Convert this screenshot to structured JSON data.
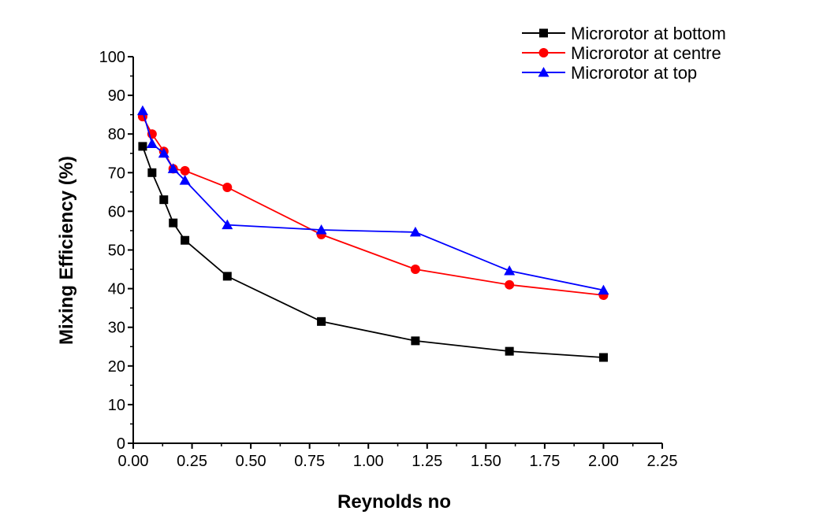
{
  "chart_data": {
    "type": "line",
    "title": "",
    "xlabel": "Reynolds no",
    "ylabel": "Mixing Efficiency (%)",
    "xlim": [
      0,
      2.25
    ],
    "ylim": [
      0,
      100
    ],
    "x_ticks": [
      "0.00",
      "0.25",
      "0.50",
      "0.75",
      "1.00",
      "1.25",
      "1.50",
      "1.75",
      "2.00",
      "2.25"
    ],
    "y_ticks": [
      "0",
      "10",
      "20",
      "30",
      "40",
      "50",
      "60",
      "70",
      "80",
      "90",
      "100"
    ],
    "grid": false,
    "legend_position": "top-right",
    "series": [
      {
        "name": "Microrotor at bottom",
        "color": "#000000",
        "marker": "square",
        "points": [
          [
            0.04,
            76.8
          ],
          [
            0.08,
            70.0
          ],
          [
            0.13,
            63.0
          ],
          [
            0.17,
            57.0
          ],
          [
            0.22,
            52.5
          ],
          [
            0.4,
            43.2
          ],
          [
            0.8,
            31.5
          ],
          [
            1.2,
            26.5
          ],
          [
            1.6,
            23.8
          ],
          [
            2.0,
            22.2
          ]
        ]
      },
      {
        "name": "Microrotor at centre",
        "color": "#ff0000",
        "marker": "circle",
        "points": [
          [
            0.04,
            84.5
          ],
          [
            0.08,
            80.0
          ],
          [
            0.13,
            75.5
          ],
          [
            0.17,
            71.0
          ],
          [
            0.22,
            70.5
          ],
          [
            0.4,
            66.2
          ],
          [
            0.8,
            54.0
          ],
          [
            1.2,
            45.0
          ],
          [
            1.6,
            41.0
          ],
          [
            2.0,
            38.3
          ]
        ]
      },
      {
        "name": "Microrotor at top",
        "color": "#0000ff",
        "marker": "triangle",
        "points": [
          [
            0.04,
            86.0
          ],
          [
            0.08,
            77.5
          ],
          [
            0.13,
            75.0
          ],
          [
            0.17,
            71.0
          ],
          [
            0.22,
            68.0
          ],
          [
            0.4,
            56.5
          ],
          [
            0.8,
            55.2
          ],
          [
            1.2,
            54.6
          ],
          [
            1.6,
            44.6
          ],
          [
            2.0,
            39.6
          ]
        ]
      }
    ]
  }
}
